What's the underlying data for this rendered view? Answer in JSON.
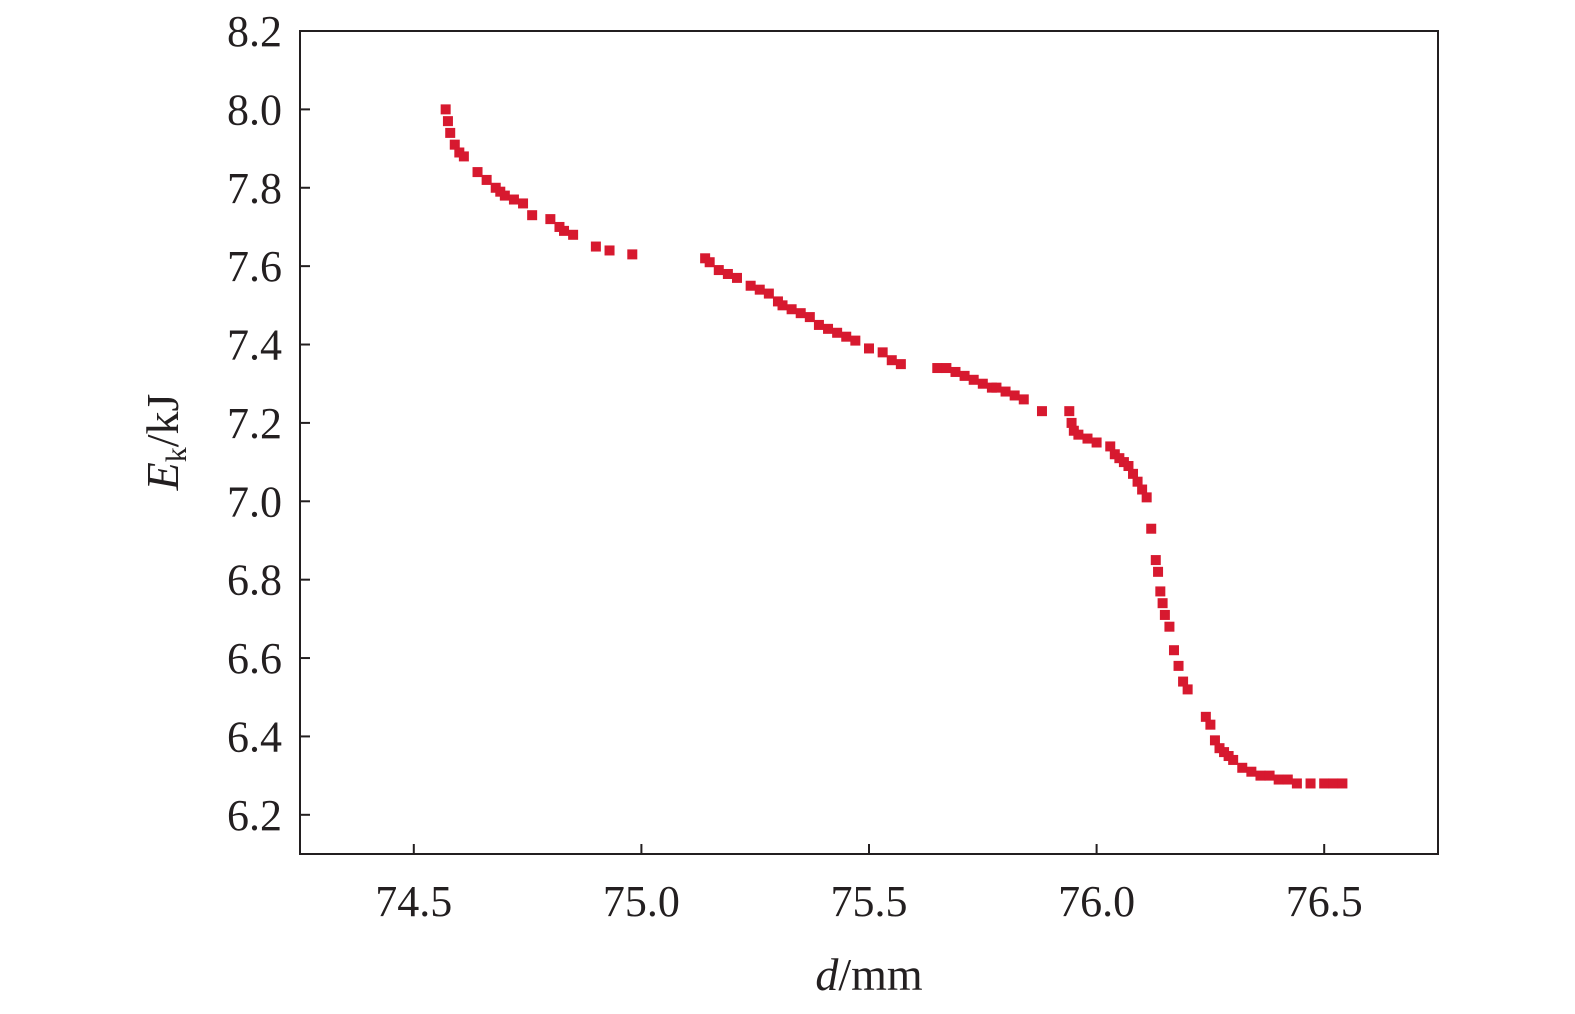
{
  "chart_data": {
    "type": "scatter",
    "xlabel": {
      "var": "d",
      "unit": "/mm"
    },
    "ylabel": {
      "var": "E",
      "sub": "k",
      "unit": "/kJ"
    },
    "xlim": [
      74.25,
      76.75
    ],
    "ylim": [
      6.1,
      8.2
    ],
    "xticks": [
      "74.5",
      "75.0",
      "75.5",
      "76.0",
      "76.5"
    ],
    "yticks": [
      "6.2",
      "6.4",
      "6.6",
      "6.8",
      "7.0",
      "7.2",
      "7.4",
      "7.6",
      "7.8",
      "8.0",
      "8.2"
    ],
    "marker_color": "#d7192f",
    "grid": false,
    "series": [
      {
        "x": [
          74.57,
          74.575,
          74.58,
          74.59,
          74.6,
          74.61,
          74.64,
          74.66,
          74.68,
          74.69,
          74.7,
          74.72,
          74.74,
          74.76,
          74.8,
          74.82,
          74.83,
          74.85,
          74.9,
          74.93,
          74.98,
          75.14,
          75.15,
          75.17,
          75.19,
          75.21,
          75.24,
          75.26,
          75.28,
          75.3,
          75.31,
          75.33,
          75.35,
          75.37,
          75.39,
          75.41,
          75.43,
          75.45,
          75.47,
          75.5,
          75.53,
          75.55,
          75.57,
          75.65,
          75.67,
          75.69,
          75.71,
          75.73,
          75.75,
          75.77,
          75.78,
          75.8,
          75.82,
          75.84,
          75.88,
          75.94,
          75.945,
          75.95,
          75.96,
          75.98,
          76.0,
          76.03,
          76.04,
          76.05,
          76.06,
          76.07,
          76.08,
          76.09,
          76.1,
          76.11,
          76.12,
          76.13,
          76.135,
          76.14,
          76.145,
          76.15,
          76.16,
          76.17,
          76.18,
          76.19,
          76.2,
          76.24,
          76.25,
          76.26,
          76.27,
          76.28,
          76.29,
          76.3,
          76.32,
          76.34,
          76.36,
          76.38,
          76.4,
          76.42,
          76.44,
          76.47,
          76.5,
          76.52,
          76.54
        ],
        "y": [
          8.0,
          7.97,
          7.94,
          7.91,
          7.89,
          7.88,
          7.84,
          7.82,
          7.8,
          7.79,
          7.78,
          7.77,
          7.76,
          7.73,
          7.72,
          7.7,
          7.69,
          7.68,
          7.65,
          7.64,
          7.63,
          7.62,
          7.61,
          7.59,
          7.58,
          7.57,
          7.55,
          7.54,
          7.53,
          7.51,
          7.5,
          7.49,
          7.48,
          7.47,
          7.45,
          7.44,
          7.43,
          7.42,
          7.41,
          7.39,
          7.38,
          7.36,
          7.35,
          7.34,
          7.34,
          7.33,
          7.32,
          7.31,
          7.3,
          7.29,
          7.29,
          7.28,
          7.27,
          7.26,
          7.23,
          7.23,
          7.2,
          7.18,
          7.17,
          7.16,
          7.15,
          7.14,
          7.12,
          7.11,
          7.1,
          7.09,
          7.07,
          7.05,
          7.03,
          7.01,
          6.93,
          6.85,
          6.82,
          6.77,
          6.74,
          6.71,
          6.68,
          6.62,
          6.58,
          6.54,
          6.52,
          6.45,
          6.43,
          6.39,
          6.37,
          6.36,
          6.35,
          6.34,
          6.32,
          6.31,
          6.3,
          6.3,
          6.29,
          6.29,
          6.28,
          6.28,
          6.28,
          6.28,
          6.28
        ]
      }
    ]
  }
}
